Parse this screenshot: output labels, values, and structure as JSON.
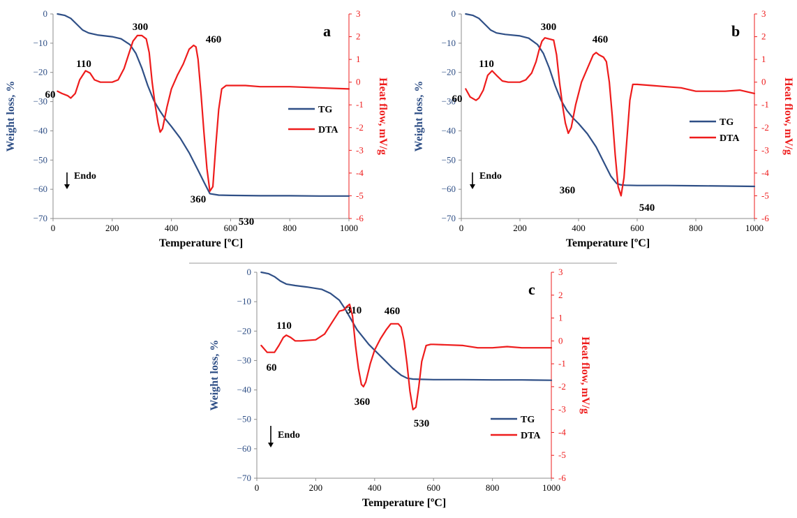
{
  "colors": {
    "tg": "#2f4f86",
    "dta": "#ee1c1c",
    "axis": "#8c8c8c",
    "text": "#000000"
  },
  "chart_data": [
    {
      "type": "line",
      "panel_letter": "a",
      "xlabel": "Temperature [ºC]",
      "ylabel_left": "Weight loss, %",
      "ylabel_right": "Heat flow, mV/g",
      "xlim": [
        0,
        1000
      ],
      "xticks": [
        "0",
        "200",
        "400",
        "600",
        "800",
        "1000"
      ],
      "ylim_left": [
        -70,
        0
      ],
      "yticks_left": [
        "0",
        "−10",
        "−20",
        "−30",
        "−40",
        "−50",
        "−60",
        "−70"
      ],
      "ylim_right": [
        -6,
        3
      ],
      "yticks_right": [
        "3",
        "2",
        "1",
        "0",
        "-1",
        "-2",
        "-3",
        "-4",
        "-5",
        "-6"
      ],
      "legend": [
        "TG",
        "DTA"
      ],
      "legend_position": "center-right",
      "endo_label": "Endo",
      "peak_labels": [
        "60",
        "110",
        "300",
        "360",
        "460",
        "530"
      ],
      "series": [
        {
          "name": "TG",
          "axis": "left",
          "x": [
            15,
            40,
            60,
            80,
            100,
            120,
            150,
            200,
            230,
            260,
            280,
            300,
            320,
            340,
            360,
            380,
            400,
            430,
            460,
            490,
            510,
            530,
            560,
            600,
            700,
            800,
            900,
            1000
          ],
          "y": [
            0,
            -0.5,
            -1.5,
            -3.5,
            -5.5,
            -6.5,
            -7.2,
            -7.8,
            -8.5,
            -10.5,
            -13.5,
            -18.5,
            -24.5,
            -29.5,
            -33,
            -36,
            -38.5,
            -42.5,
            -47.5,
            -53.5,
            -57.5,
            -61.5,
            -62,
            -62.1,
            -62.2,
            -62.2,
            -62.3,
            -62.3
          ]
        },
        {
          "name": "DTA",
          "axis": "right",
          "x": [
            15,
            30,
            50,
            60,
            75,
            90,
            110,
            125,
            140,
            160,
            200,
            220,
            240,
            255,
            270,
            285,
            300,
            315,
            325,
            335,
            345,
            355,
            362,
            370,
            385,
            400,
            420,
            440,
            460,
            475,
            483,
            490,
            500,
            510,
            520,
            530,
            540,
            550,
            560,
            570,
            585,
            600,
            650,
            700,
            750,
            800,
            900,
            1000
          ],
          "y": [
            -0.4,
            -0.5,
            -0.6,
            -0.7,
            -0.5,
            0.1,
            0.5,
            0.4,
            0.1,
            0.0,
            0.0,
            0.1,
            0.6,
            1.2,
            1.8,
            2.05,
            2.05,
            1.9,
            1.3,
            0.0,
            -1.0,
            -1.8,
            -2.2,
            -2.05,
            -1.1,
            -0.3,
            0.3,
            0.8,
            1.45,
            1.62,
            1.55,
            1.0,
            -0.5,
            -2.2,
            -3.8,
            -4.8,
            -4.6,
            -2.8,
            -1.2,
            -0.3,
            -0.15,
            -0.15,
            -0.15,
            -0.2,
            -0.2,
            -0.2,
            -0.25,
            -0.3
          ]
        }
      ]
    },
    {
      "type": "line",
      "panel_letter": "b",
      "xlabel": "Temperature [ºC]",
      "ylabel_left": "Weight loss, %",
      "ylabel_right": "Heat flow, mV/g",
      "xlim": [
        0,
        1000
      ],
      "xticks": [
        "0",
        "200",
        "400",
        "600",
        "800",
        "1000"
      ],
      "ylim_left": [
        -70,
        0
      ],
      "yticks_left": [
        "0",
        "−10",
        "−20",
        "−30",
        "−40",
        "−50",
        "−60",
        "−70"
      ],
      "ylim_right": [
        -6,
        3
      ],
      "yticks_right": [
        "3",
        "2",
        "1",
        "0",
        "-1",
        "-2",
        "-3",
        "-4",
        "-5",
        "-6"
      ],
      "legend": [
        "TG",
        "DTA"
      ],
      "legend_position": "center-right",
      "endo_label": "Endo",
      "peak_labels": [
        "60",
        "110",
        "300",
        "360",
        "460",
        "540"
      ],
      "series": [
        {
          "name": "TG",
          "axis": "left",
          "x": [
            15,
            40,
            60,
            80,
            100,
            120,
            150,
            200,
            230,
            260,
            280,
            300,
            320,
            340,
            360,
            380,
            400,
            430,
            460,
            490,
            510,
            530,
            545,
            560,
            600,
            700,
            800,
            900,
            1000
          ],
          "y": [
            0,
            -0.5,
            -1.5,
            -3.5,
            -5.5,
            -6.5,
            -7,
            -7.5,
            -8.3,
            -10.5,
            -13.5,
            -18.5,
            -24.5,
            -29.5,
            -33,
            -35.5,
            -37.5,
            -41,
            -45.5,
            -51.5,
            -55.5,
            -58,
            -58.5,
            -58.6,
            -58.7,
            -58.7,
            -58.8,
            -58.9,
            -59
          ]
        },
        {
          "name": "DTA",
          "axis": "right",
          "x": [
            15,
            30,
            50,
            60,
            75,
            90,
            105,
            120,
            140,
            160,
            200,
            220,
            240,
            255,
            265,
            275,
            285,
            300,
            315,
            325,
            335,
            345,
            355,
            365,
            375,
            390,
            410,
            430,
            450,
            460,
            470,
            485,
            495,
            505,
            515,
            525,
            535,
            545,
            555,
            565,
            575,
            585,
            600,
            650,
            700,
            750,
            800,
            850,
            900,
            950,
            1000
          ],
          "y": [
            -0.3,
            -0.65,
            -0.8,
            -0.7,
            -0.35,
            0.3,
            0.5,
            0.3,
            0.05,
            0.0,
            0.0,
            0.1,
            0.4,
            0.9,
            1.4,
            1.8,
            1.95,
            1.9,
            1.85,
            1.2,
            0.0,
            -1.0,
            -1.8,
            -2.25,
            -2.0,
            -1.0,
            0.0,
            0.6,
            1.2,
            1.3,
            1.2,
            1.1,
            0.9,
            0.0,
            -1.5,
            -3.2,
            -4.6,
            -5.0,
            -4.2,
            -2.5,
            -0.8,
            -0.1,
            -0.1,
            -0.15,
            -0.2,
            -0.25,
            -0.4,
            -0.4,
            -0.4,
            -0.35,
            -0.5
          ]
        }
      ]
    },
    {
      "type": "line",
      "panel_letter": "c",
      "xlabel": "Temperature [ºC]",
      "ylabel_left": "Weight loss, %",
      "ylabel_right": "Heat flow, mV/g",
      "xlim": [
        0,
        1000
      ],
      "xticks": [
        "0",
        "200",
        "400",
        "600",
        "800",
        "1000"
      ],
      "ylim_left": [
        -70,
        0
      ],
      "yticks_left": [
        "0",
        "−10",
        "−20",
        "−30",
        "−40",
        "−50",
        "−60",
        "−70"
      ],
      "ylim_right": [
        -6,
        3
      ],
      "yticks_right": [
        "3",
        "2",
        "1",
        "0",
        "-1",
        "-2",
        "-3",
        "-4",
        "-5",
        "-6"
      ],
      "legend": [
        "TG",
        "DTA"
      ],
      "legend_position": "bottom-right",
      "endo_label": "Endo",
      "peak_labels": [
        "60",
        "110",
        "310",
        "360",
        "460",
        "530"
      ],
      "series": [
        {
          "name": "TG",
          "axis": "left",
          "x": [
            15,
            40,
            60,
            80,
            100,
            130,
            170,
            220,
            250,
            280,
            300,
            320,
            340,
            360,
            380,
            400,
            430,
            460,
            490,
            510,
            530,
            560,
            600,
            700,
            800,
            900,
            1000
          ],
          "y": [
            0,
            -0.5,
            -1.5,
            -3,
            -4,
            -4.5,
            -5,
            -5.8,
            -7.2,
            -9.5,
            -12.5,
            -16,
            -19.5,
            -22,
            -24.5,
            -26.5,
            -29.5,
            -32.5,
            -35,
            -36,
            -36.3,
            -36.4,
            -36.5,
            -36.5,
            -36.6,
            -36.6,
            -36.7
          ]
        },
        {
          "name": "DTA",
          "axis": "right",
          "x": [
            15,
            35,
            60,
            75,
            90,
            100,
            115,
            130,
            150,
            200,
            230,
            260,
            280,
            295,
            305,
            315,
            325,
            335,
            345,
            355,
            362,
            370,
            385,
            400,
            420,
            440,
            455,
            470,
            480,
            490,
            500,
            510,
            520,
            530,
            540,
            550,
            560,
            575,
            590,
            600,
            700,
            750,
            800,
            850,
            900,
            1000
          ],
          "y": [
            -0.2,
            -0.5,
            -0.5,
            -0.2,
            0.15,
            0.25,
            0.15,
            0.0,
            0.0,
            0.05,
            0.3,
            0.9,
            1.3,
            1.35,
            1.5,
            1.6,
            1.1,
            -0.2,
            -1.2,
            -1.9,
            -2.0,
            -1.8,
            -1.0,
            -0.4,
            0.1,
            0.5,
            0.75,
            0.75,
            0.75,
            0.6,
            0.0,
            -1.0,
            -2.2,
            -3.0,
            -2.9,
            -2.0,
            -0.9,
            -0.2,
            -0.15,
            -0.15,
            -0.2,
            -0.3,
            -0.3,
            -0.25,
            -0.3,
            -0.3
          ]
        }
      ]
    }
  ]
}
